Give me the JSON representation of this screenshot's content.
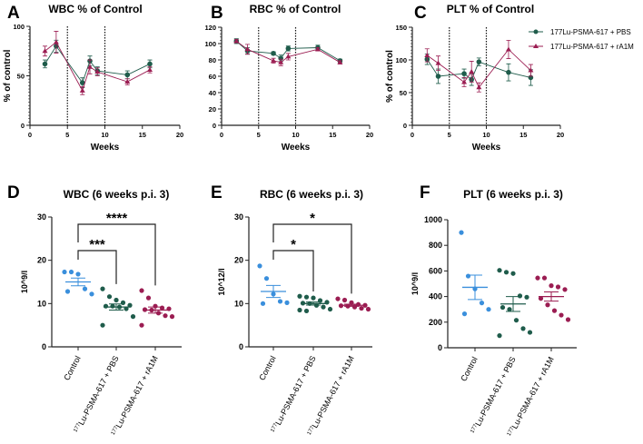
{
  "colors": {
    "pbs": "#1f5c4b",
    "ra1m": "#9b1d52",
    "control": "#3a8fdc",
    "axis": "#222222"
  },
  "legend": [
    {
      "label": "177Lu-PSMA-617 + PBS",
      "marker": "circle",
      "color": "#1f5c4b"
    },
    {
      "label": "177Lu-PSMA-617 + rA1M",
      "marker": "triangle",
      "color": "#9b1d52"
    }
  ],
  "chart_data": [
    {
      "panel": "A",
      "type": "line",
      "title": "WBC % of Control",
      "xlabel": "Weeks",
      "ylabel": "% of control",
      "xlim": [
        0,
        20
      ],
      "ylim": [
        0,
        100
      ],
      "xticks": [
        0,
        5,
        10,
        15,
        20
      ],
      "yticks": [
        0,
        50,
        100
      ],
      "vlines": [
        5,
        10
      ],
      "x": [
        2,
        3.5,
        7,
        8,
        9,
        13,
        16
      ],
      "series": [
        {
          "name": "177Lu-PSMA-617 + PBS",
          "values": [
            62,
            80,
            43,
            65,
            55,
            51,
            62
          ],
          "errors": [
            4,
            6,
            5,
            5,
            4,
            4,
            4
          ],
          "color": "#1f5c4b",
          "marker": "circle"
        },
        {
          "name": "177Lu-PSMA-617 + rA1M",
          "values": [
            75,
            84,
            35,
            59,
            54,
            44,
            56
          ],
          "errors": [
            5,
            11,
            4,
            7,
            4,
            3,
            3
          ],
          "color": "#9b1d52",
          "marker": "triangle"
        }
      ]
    },
    {
      "panel": "B",
      "type": "line",
      "title": "RBC % of Control",
      "xlabel": "Weeks",
      "ylabel": "",
      "xlim": [
        0,
        20
      ],
      "ylim": [
        0,
        120
      ],
      "xticks": [
        0,
        5,
        10,
        15,
        20
      ],
      "yticks": [
        0,
        20,
        40,
        60,
        80,
        100,
        120
      ],
      "vlines": [
        5,
        10
      ],
      "x": [
        2,
        3.5,
        7,
        8,
        9,
        13,
        16
      ],
      "series": [
        {
          "name": "177Lu-PSMA-617 + PBS",
          "values": [
            103,
            91,
            88,
            82,
            94,
            95,
            79
          ],
          "errors": [
            3,
            4,
            2,
            4,
            3,
            3,
            2
          ],
          "color": "#1f5c4b",
          "marker": "circle"
        },
        {
          "name": "177Lu-PSMA-617 + rA1M",
          "values": [
            103,
            93,
            79,
            77,
            84,
            93,
            77
          ],
          "errors": [
            2,
            6,
            3,
            4,
            4,
            2,
            2
          ],
          "color": "#9b1d52",
          "marker": "triangle"
        }
      ]
    },
    {
      "panel": "C",
      "type": "line",
      "title": "PLT % of Control",
      "xlabel": "Weeks",
      "ylabel": "% of control",
      "xlim": [
        0,
        20
      ],
      "ylim": [
        0,
        150
      ],
      "xticks": [
        0,
        5,
        10,
        15,
        20
      ],
      "yticks": [
        0,
        50,
        100,
        150
      ],
      "vlines": [
        5,
        10
      ],
      "x": [
        2,
        3.5,
        7,
        8,
        9,
        13,
        16
      ],
      "series": [
        {
          "name": "177Lu-PSMA-617 + PBS",
          "values": [
            101,
            75,
            79,
            70,
            97,
            81,
            73
          ],
          "errors": [
            8,
            11,
            7,
            9,
            6,
            13,
            12
          ],
          "color": "#1f5c4b",
          "marker": "circle"
        },
        {
          "name": "177Lu-PSMA-617 + rA1M",
          "values": [
            107,
            95,
            66,
            82,
            58,
            116,
            84
          ],
          "errors": [
            10,
            11,
            7,
            16,
            7,
            14,
            9
          ],
          "color": "#9b1d52",
          "marker": "triangle"
        }
      ]
    },
    {
      "panel": "D",
      "type": "scatter",
      "title": "WBC (6 weeks p.i. 3)",
      "ylabel": "10^9/l",
      "ylim": [
        0,
        30
      ],
      "yticks": [
        0,
        10,
        20,
        30
      ],
      "categories": [
        "Control",
        "177Lu-PSMA-617 + PBS",
        "177Lu-PSMA-617 + rA1M"
      ],
      "groups": [
        {
          "values": [
            17.3,
            17.3,
            16.8,
            13.4,
            12.2,
            12.8
          ],
          "mean": 15.0,
          "sem": 0.9,
          "color": "#3a8fdc"
        },
        {
          "values": [
            13.4,
            11.6,
            10.8,
            10.2,
            9.6,
            9.4,
            9.4,
            9.2,
            8.8,
            7.0,
            5.0
          ],
          "mean": 9.2,
          "sem": 0.7,
          "color": "#1f5c4b"
        },
        {
          "values": [
            13.0,
            11.3,
            9.4,
            9.0,
            8.8,
            8.6,
            8.5,
            7.8,
            7.2,
            7.0,
            5.0
          ],
          "mean": 8.5,
          "sem": 0.7,
          "color": "#9b1d52"
        }
      ],
      "significance": [
        {
          "from": 0,
          "to": 1,
          "label": "***"
        },
        {
          "from": 0,
          "to": 2,
          "label": "****"
        }
      ]
    },
    {
      "panel": "E",
      "type": "scatter",
      "title": "RBC (6 weeks p.i. 3)",
      "ylabel": "10^12/l",
      "ylim": [
        0,
        30
      ],
      "yticks": [
        0,
        10,
        20,
        30
      ],
      "categories": [
        "Control",
        "177Lu-PSMA-617 + PBS",
        "177Lu-PSMA-617 + rA1M"
      ],
      "groups": [
        {
          "values": [
            18.7,
            15.8,
            12.2,
            10.5,
            10.2,
            10.0
          ],
          "mean": 12.8,
          "sem": 1.4,
          "color": "#3a8fdc"
        },
        {
          "values": [
            11.7,
            11.5,
            11.3,
            10.7,
            10.3,
            10.1,
            10.0,
            9.6,
            9.2,
            8.7,
            8.5,
            8.3
          ],
          "mean": 10.0,
          "sem": 0.35,
          "color": "#1f5c4b"
        },
        {
          "values": [
            11.1,
            10.8,
            10.2,
            9.8,
            9.6,
            9.5,
            9.4,
            9.2,
            8.9,
            8.7
          ],
          "mean": 9.6,
          "sem": 0.25,
          "color": "#9b1d52"
        }
      ],
      "significance": [
        {
          "from": 0,
          "to": 1,
          "label": "*"
        },
        {
          "from": 0,
          "to": 2,
          "label": "*"
        }
      ]
    },
    {
      "panel": "F",
      "type": "scatter",
      "title": "PLT (6 weeks p.i. 3)",
      "ylabel": "10^9/l",
      "ylim": [
        0,
        1000
      ],
      "yticks": [
        0,
        200,
        400,
        600,
        800,
        1000
      ],
      "categories": [
        "Control",
        "177Lu-PSMA-617 + PBS",
        "177Lu-PSMA-617 + rA1M"
      ],
      "groups": [
        {
          "values": [
            900,
            560,
            460,
            350,
            300,
            265
          ],
          "mean": 472,
          "sem": 95,
          "color": "#3a8fdc"
        },
        {
          "values": [
            605,
            590,
            580,
            405,
            395,
            315,
            300,
            215,
            150,
            120,
            95
          ],
          "mean": 342,
          "sem": 58,
          "color": "#1f5c4b"
        },
        {
          "values": [
            545,
            545,
            485,
            475,
            455,
            385,
            335,
            290,
            255,
            220
          ],
          "mean": 400,
          "sem": 36,
          "color": "#9b1d52"
        }
      ],
      "significance": []
    }
  ]
}
